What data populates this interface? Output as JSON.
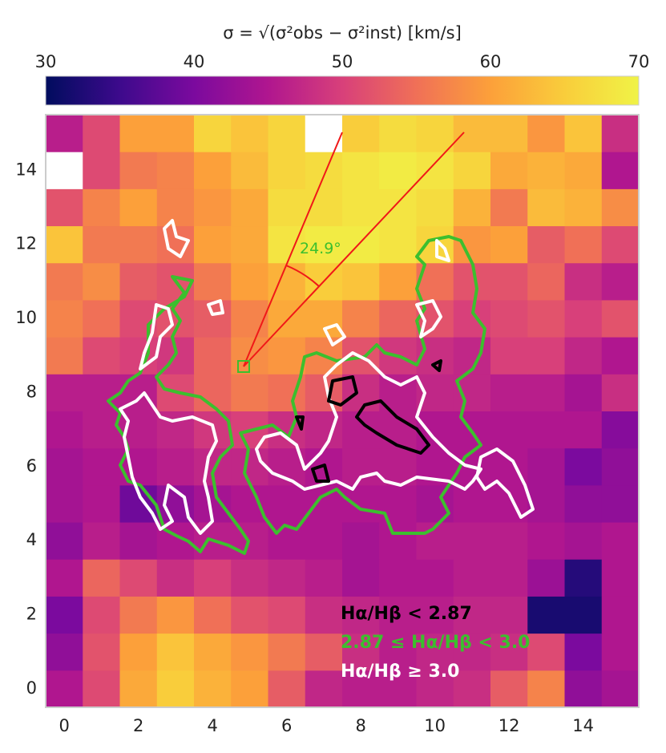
{
  "chart_data": {
    "type": "heatmap",
    "colorbar_label": "σ = √(σ²obs − σ²inst) [km/s]",
    "clim": [
      30,
      70
    ],
    "cticks": [
      30,
      40,
      50,
      60,
      70
    ],
    "colormap": [
      "#000c5e",
      "#3d0a8c",
      "#7b0a9e",
      "#b0168f",
      "#d8407a",
      "#f07057",
      "#fca03a",
      "#f9cd3b",
      "#f0f346"
    ],
    "xlim": [
      -0.5,
      15.5
    ],
    "ylim": [
      -0.5,
      15.5
    ],
    "xticks": [
      0,
      2,
      4,
      6,
      8,
      10,
      12,
      14
    ],
    "yticks": [
      0,
      2,
      4,
      6,
      8,
      10,
      12,
      14
    ],
    "values": [
      [
        45,
        51,
        61,
        65,
        62,
        60,
        53,
        47,
        46,
        46,
        47,
        48,
        53,
        57,
        42,
        44
      ],
      [
        42,
        52,
        60,
        64,
        61,
        59,
        56,
        53,
        48,
        46,
        47,
        47,
        48,
        51,
        40,
        45
      ],
      [
        40,
        51,
        56,
        59,
        55,
        52,
        51,
        48,
        47,
        46,
        46,
        47,
        47,
        32,
        32,
        45
      ],
      [
        45,
        54,
        51,
        48,
        50,
        48,
        47,
        46,
        44,
        45,
        45,
        46,
        46,
        43,
        33,
        45
      ],
      [
        42,
        46,
        44,
        45,
        46,
        46,
        45,
        45,
        44,
        45,
        46,
        46,
        46,
        45,
        44,
        45
      ],
      [
        44,
        45,
        39,
        42,
        44,
        45,
        45,
        45,
        45,
        45,
        44,
        45,
        45,
        44,
        42,
        42
      ],
      [
        44,
        45,
        45,
        46,
        47,
        47,
        46,
        45,
        46,
        46,
        45,
        45,
        45,
        44,
        40,
        42
      ],
      [
        45,
        46,
        46,
        47,
        49,
        50,
        48,
        47,
        46,
        46,
        45,
        45,
        45,
        45,
        45,
        41
      ],
      [
        46,
        46,
        46,
        51,
        54,
        56,
        55,
        53,
        48,
        46,
        47,
        47,
        46,
        46,
        44,
        48
      ],
      [
        56,
        51,
        50,
        49,
        54,
        58,
        59,
        57,
        52,
        49,
        48,
        47,
        50,
        50,
        47,
        45
      ],
      [
        57,
        55,
        51,
        52,
        53,
        57,
        61,
        61,
        57,
        54,
        52,
        50,
        51,
        52,
        50,
        52
      ],
      [
        56,
        58,
        53,
        52,
        56,
        60,
        62,
        65,
        64,
        60,
        55,
        52,
        52,
        54,
        48,
        46
      ],
      [
        64,
        56,
        56,
        55,
        60,
        61,
        68,
        69,
        69,
        68,
        66,
        59,
        60,
        53,
        55,
        51
      ],
      [
        52,
        57,
        60,
        57,
        59,
        61,
        67,
        67,
        68,
        68,
        67,
        62,
        56,
        63,
        62,
        58
      ],
      [
        null,
        51,
        56,
        57,
        60,
        63,
        66,
        67,
        68,
        69,
        68,
        66,
        61,
        62,
        61,
        45
      ],
      [
        46,
        51,
        60,
        60,
        66,
        64,
        66,
        null,
        65,
        67,
        66,
        63,
        63,
        59,
        64,
        48
      ]
    ],
    "angle_annotation": "24.9°",
    "legend": [
      {
        "label": "Hα/Hβ < 2.87",
        "color": "#000000"
      },
      {
        "label": "2.87 ≤ Hα/Hβ < 3.0",
        "color": "#3cbf2e"
      },
      {
        "label": "Hα/Hβ ≥ 3.0",
        "color": "#ffffff"
      }
    ]
  }
}
